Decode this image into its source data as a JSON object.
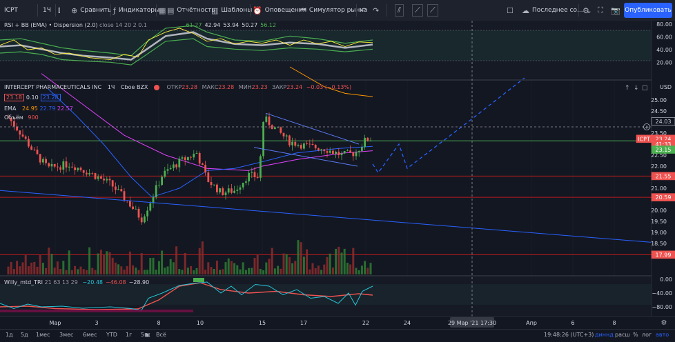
{
  "toolbar": {
    "symbol": "ICPT",
    "interval": "1Ч",
    "compare_label": "Сравнить",
    "indicators_label": "Индикаторы",
    "reports_label": "Отчётность",
    "templates_label": "Шаблоны",
    "alerts_label": "Оповещения",
    "replay_label": "Симулятор рынка",
    "layout_label": "Последнее со...",
    "publish_label": "Опубликовать"
  },
  "rsi_pane": {
    "title": "RSI + BB (EMA) • Dispersion (2.0)",
    "params": "close 14 20 2 0.1",
    "values": [
      "61.27",
      "42.94",
      "53.94",
      "50.27",
      "56.12"
    ],
    "value_colors": [
      "#4caf50",
      "#d1d4dc",
      "#d1d4dc",
      "#d1d4dc",
      "#4caf50"
    ],
    "axis_ticks": [
      "80.00",
      "60.00",
      "40.00",
      "20.00"
    ]
  },
  "main_pane": {
    "symbol_name": "INTERCEPT PHARMACEUTICALS INC",
    "interval": "1Ч",
    "exchange": "Cboe BZX",
    "ohlc": {
      "open_label": "ОТКР",
      "open": "23.28",
      "high_label": "МАКС",
      "high": "23.28",
      "low_label": "МИН",
      "low": "23.23",
      "close_label": "ЗАКР",
      "close": "23.24",
      "change": "−0.03 (−0.13%)"
    },
    "bid": "23.18",
    "spread": "0.10",
    "ask": "23.28",
    "ema_label": "EMA",
    "ema_values": [
      "24.95",
      "22.79",
      "22.57"
    ],
    "volume_label": "Объём",
    "volume_value": "900",
    "currency": "USD",
    "axis_ticks": [
      "25.00",
      "24.50",
      "24.00",
      "23.50",
      "23.00",
      "22.50",
      "22.00",
      "21.50",
      "21.00",
      "20.50",
      "20.00",
      "19.50",
      "19.00",
      "18.50",
      "18.00"
    ],
    "price_badges": [
      {
        "label": "24.03",
        "value": 24.03,
        "color": "#131722",
        "text": "#d1d4dc"
      },
      {
        "label": "ICPT",
        "value": 23.24,
        "color": "#ef5350",
        "text": "#ffffff"
      },
      {
        "label": "23.24",
        "value": 23.24,
        "color": "#ef5350",
        "text": "#ffffff"
      },
      {
        "label": "41:33",
        "value": 23.0,
        "color": "#ef5350",
        "text": "#ffffff"
      },
      {
        "label": "23.15",
        "value": 22.75,
        "color": "#4caf50",
        "text": "#ffffff"
      },
      {
        "label": "21.55",
        "value": 21.55,
        "color": "#ef5350",
        "text": "#ffffff"
      },
      {
        "label": "20.59",
        "value": 20.59,
        "color": "#ef5350",
        "text": "#ffffff"
      },
      {
        "label": "17.99",
        "value": 17.99,
        "color": "#ef5350",
        "text": "#ffffff"
      }
    ],
    "hlines": [
      {
        "value": 23.15,
        "color": "#4caf50"
      },
      {
        "value": 21.55,
        "color": "#b71c1c"
      },
      {
        "value": 20.59,
        "color": "#b71c1c"
      },
      {
        "value": 17.99,
        "color": "#b71c1c"
      }
    ]
  },
  "willy_pane": {
    "title": "Willy_mtd_TRI",
    "params": "21 63 13 29",
    "values": [
      "−20.48",
      "−46.08",
      "−28.90"
    ],
    "value_colors": [
      "#26c6da",
      "#ef5350",
      "#d1d4dc"
    ],
    "axis_ticks": [
      "0.00",
      "−40.00",
      "−80.00"
    ]
  },
  "time_axis": {
    "labels": [
      "Мар",
      "3",
      "8",
      "10",
      "15",
      "17",
      "22",
      "24",
      "Апр",
      "6",
      "8"
    ],
    "cursor_label": "29 Мар '21  17:30"
  },
  "bottombar": {
    "ranges": [
      "1д",
      "5д",
      "1мес",
      "3мес",
      "6мес",
      "YTD",
      "1г",
      "5г",
      "Всё"
    ],
    "time": "19:48:26 (UTC+3)",
    "options": [
      "%",
      "лог",
      "авто"
    ],
    "session": "диннд",
    "adjust": "расш"
  },
  "colors": {
    "background": "#131722",
    "up": "#4caf50",
    "down": "#ef5350",
    "accent": "#2962ff"
  }
}
